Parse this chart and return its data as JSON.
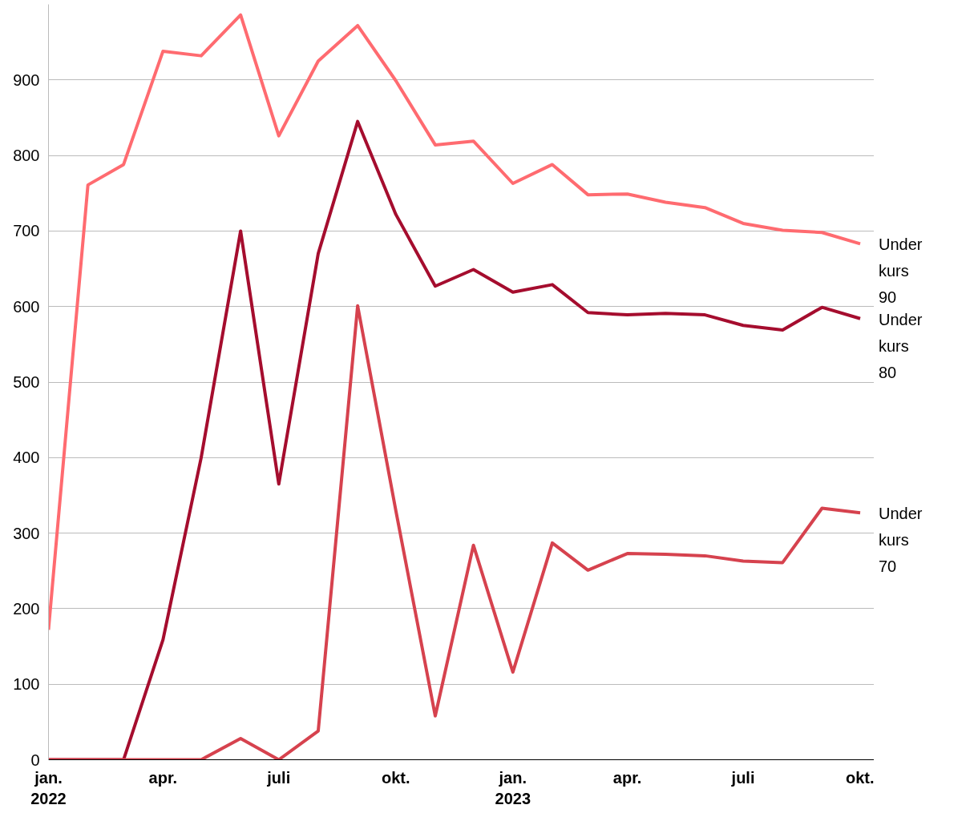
{
  "chart_data": {
    "type": "line",
    "x": [
      "2022-01",
      "2022-02",
      "2022-03",
      "2022-04",
      "2022-05",
      "2022-06",
      "2022-07",
      "2022-08",
      "2022-09",
      "2022-10",
      "2022-11",
      "2022-12",
      "2023-01",
      "2023-02",
      "2023-03",
      "2023-04",
      "2023-05",
      "2023-06",
      "2023-07",
      "2023-08",
      "2023-09",
      "2023-10"
    ],
    "series": [
      {
        "name": "Under\nkurs\n90",
        "color": "#ff6b70",
        "values": [
          172,
          761,
          788,
          938,
          932,
          986,
          826,
          925,
          972,
          899,
          814,
          819,
          763,
          788,
          748,
          749,
          738,
          731,
          710,
          701,
          698,
          683
        ]
      },
      {
        "name": "Under\nkurs\n80",
        "color": "#a50d2e",
        "values": [
          0,
          0,
          0,
          159,
          400,
          700,
          365,
          670,
          845,
          722,
          627,
          649,
          619,
          629,
          592,
          589,
          591,
          589,
          575,
          569,
          599,
          584
        ]
      },
      {
        "name": "Under\nkurs\n70",
        "color": "#d6424e",
        "values": [
          0,
          0,
          0,
          0,
          0,
          28,
          0,
          38,
          601,
          330,
          58,
          284,
          116,
          287,
          251,
          273,
          272,
          270,
          263,
          261,
          333,
          327
        ]
      }
    ],
    "xlim": [
      "2022-01",
      "2023-10-12"
    ],
    "ylim": [
      0,
      1000
    ],
    "xticks": [
      {
        "value": "2022-01",
        "label": "jan.\n2022"
      },
      {
        "value": "2022-04",
        "label": "apr."
      },
      {
        "value": "2022-07",
        "label": "juli"
      },
      {
        "value": "2022-10",
        "label": "okt."
      },
      {
        "value": "2023-01",
        "label": "jan.\n2023"
      },
      {
        "value": "2023-04",
        "label": "apr."
      },
      {
        "value": "2023-07",
        "label": "juli"
      },
      {
        "value": "2023-10",
        "label": "okt."
      }
    ],
    "yticks": [
      0,
      100,
      200,
      300,
      400,
      500,
      600,
      700,
      800,
      900
    ],
    "grid": "y",
    "line_style": "solid",
    "marker": "none"
  }
}
